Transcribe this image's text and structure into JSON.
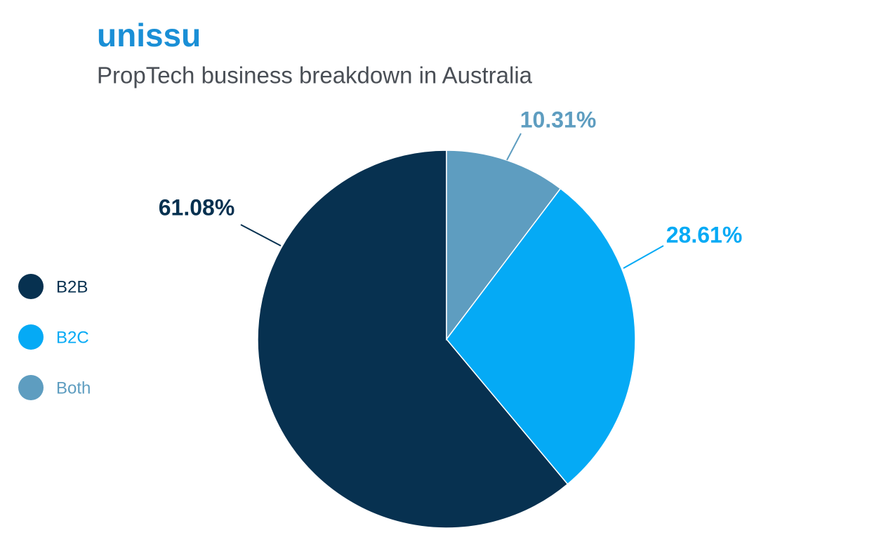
{
  "logo": "unissu",
  "chart_data": {
    "type": "pie",
    "title": "PropTech business breakdown in Australia",
    "categories": [
      "B2B",
      "B2C",
      "Both"
    ],
    "values": [
      61.08,
      28.61,
      10.31
    ],
    "value_labels": [
      "61.08%",
      "28.61%",
      "10.31%"
    ],
    "colors": [
      "#073150",
      "#05aaf5",
      "#5e9dc0"
    ],
    "legend": "left"
  }
}
